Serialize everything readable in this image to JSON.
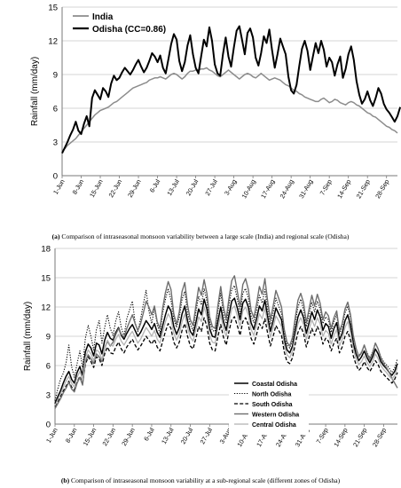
{
  "panels": [
    {
      "caption": {
        "letter": "a",
        "text": "Comparison of intraseasonal monsoon variability between a large scale (India) and regional scale (Odisha)"
      }
    },
    {
      "caption": {
        "letter": "b",
        "text": "Comparison of intraseasonal monsoon variability at a sub-regional scale (different zones of Odisha)"
      }
    }
  ],
  "chart_data": [
    {
      "type": "line",
      "title": "",
      "xlabel": "",
      "ylabel": "Rainfall (mm/day)",
      "ylim": [
        0,
        15
      ],
      "yticks": [
        0,
        3,
        6,
        9,
        12,
        15
      ],
      "grid": "horizontal",
      "legend_position": "top-left",
      "tick_labels": [
        "1-Jun",
        "8-Jun",
        "15-Jun",
        "22-Jun",
        "29-Jun",
        "6-Jul",
        "13-Jul",
        "20-Jul",
        "27-Jul",
        "3-Aug",
        "10-Aug",
        "17-Aug",
        "24-Aug",
        "31-Aug",
        "7-Sep",
        "14-Sep",
        "21-Sep",
        "28-Sep"
      ],
      "x_start": "1-Jun",
      "x_end": "30-Sep",
      "series": [
        {
          "name": "India",
          "color": "#8c8c8c",
          "values": [
            2.2,
            2.4,
            2.7,
            2.9,
            3.1,
            3.3,
            3.6,
            3.9,
            4.2,
            4.5,
            4.8,
            5.1,
            5.4,
            5.6,
            5.8,
            5.9,
            6.0,
            6.1,
            6.3,
            6.5,
            6.6,
            6.8,
            7.0,
            7.2,
            7.4,
            7.6,
            7.8,
            7.9,
            8.0,
            8.1,
            8.2,
            8.3,
            8.5,
            8.6,
            8.7,
            8.7,
            8.8,
            8.7,
            8.6,
            8.8,
            9.0,
            9.1,
            9.0,
            8.8,
            8.6,
            8.8,
            9.1,
            9.3,
            9.3,
            9.4,
            9.4,
            9.5,
            9.5,
            9.6,
            9.4,
            9.3,
            9.1,
            8.9,
            8.8,
            9.0,
            9.2,
            9.4,
            9.2,
            9.0,
            8.8,
            8.6,
            8.8,
            9.0,
            9.1,
            9.0,
            8.8,
            8.7,
            8.9,
            9.1,
            8.9,
            8.7,
            8.5,
            8.6,
            8.7,
            8.6,
            8.5,
            8.3,
            8.1,
            8.0,
            7.8,
            7.6,
            7.5,
            7.3,
            7.2,
            7.0,
            6.9,
            6.8,
            6.7,
            6.6,
            6.6,
            6.8,
            6.9,
            6.7,
            6.5,
            6.6,
            6.8,
            6.7,
            6.5,
            6.4,
            6.3,
            6.5,
            6.6,
            6.5,
            6.3,
            6.2,
            6.0,
            5.8,
            5.6,
            5.5,
            5.3,
            5.2,
            5.0,
            4.8,
            4.6,
            4.4,
            4.3,
            4.1,
            4.0,
            3.8
          ]
        },
        {
          "name": "Odisha (CC=0.86)",
          "color": "#000000",
          "values": [
            2.0,
            2.5,
            3.0,
            3.6,
            4.1,
            4.8,
            4.0,
            3.7,
            4.6,
            5.3,
            4.4,
            6.9,
            7.6,
            7.2,
            6.8,
            7.8,
            7.5,
            7.0,
            8.2,
            8.9,
            8.5,
            8.7,
            9.2,
            9.6,
            9.3,
            9.0,
            9.4,
            9.9,
            10.3,
            9.7,
            9.2,
            9.6,
            10.2,
            10.9,
            10.6,
            10.1,
            10.7,
            9.6,
            9.1,
            10.4,
            11.7,
            12.6,
            12.1,
            10.2,
            9.3,
            10.1,
            11.6,
            12.5,
            10.8,
            9.6,
            9.1,
            10.6,
            12.1,
            11.5,
            13.2,
            12.0,
            9.9,
            9.1,
            8.9,
            10.8,
            12.3,
            10.6,
            9.7,
            11.4,
            12.9,
            13.3,
            12.1,
            10.8,
            12.7,
            13.1,
            12.3,
            10.5,
            9.8,
            10.9,
            12.4,
            11.8,
            13.0,
            11.2,
            9.6,
            10.8,
            12.2,
            11.5,
            10.8,
            8.8,
            7.6,
            7.3,
            8.1,
            9.8,
            11.3,
            12.0,
            11.1,
            9.4,
            10.6,
            11.8,
            10.9,
            12.0,
            11.2,
            9.7,
            10.5,
            10.1,
            8.9,
            9.9,
            10.6,
            8.7,
            9.5,
            10.8,
            11.5,
            10.3,
            8.4,
            7.2,
            6.4,
            6.8,
            7.5,
            6.7,
            6.2,
            6.9,
            7.8,
            7.3,
            6.4,
            5.9,
            5.6,
            5.2,
            4.8,
            5.3,
            6.1
          ]
        }
      ]
    },
    {
      "type": "line",
      "title": "",
      "xlabel": "",
      "ylabel": "Rainfall (mm/day)",
      "ylim": [
        0,
        18
      ],
      "yticks": [
        0,
        3,
        6,
        9,
        12,
        15,
        18
      ],
      "grid": "horizontal",
      "legend_position": "bottom-center",
      "tick_labels": [
        "1-Jun",
        "8-Jun",
        "15-Jun",
        "22-Jun",
        "29-Jun",
        "6-Jul",
        "13-Jul",
        "20-Jul",
        "27-Jul",
        "3-Aug",
        "10-Aug",
        "17-Aug",
        "24-Aug",
        "31-Aug",
        "7-Sep",
        "14-Sep",
        "21-Sep",
        "28-Sep"
      ],
      "x_start": "1-Jun",
      "x_end": "30-Sep",
      "series": [
        {
          "name": "Coastal Odisha",
          "color": "#000000",
          "dash": "solid",
          "width": 1.5,
          "values": [
            2.1,
            2.8,
            3.4,
            4.2,
            4.9,
            5.4,
            4.6,
            4.2,
            5.3,
            5.9,
            5.0,
            7.4,
            8.2,
            7.8,
            7.0,
            8.3,
            8.1,
            7.2,
            8.6,
            9.4,
            8.8,
            8.6,
            9.4,
            9.9,
            9.1,
            8.7,
            9.3,
            9.8,
            10.2,
            9.6,
            9.0,
            9.4,
            10.0,
            10.6,
            10.2,
            9.7,
            10.3,
            9.4,
            8.9,
            10.1,
            11.2,
            12.1,
            11.6,
            10.0,
            9.2,
            9.9,
            11.3,
            12.1,
            10.6,
            9.5,
            9.1,
            10.4,
            11.8,
            11.2,
            12.8,
            11.8,
            9.8,
            9.0,
            8.9,
            10.6,
            12.0,
            10.5,
            9.6,
            11.2,
            12.6,
            12.9,
            11.9,
            10.7,
            12.4,
            12.8,
            12.0,
            10.4,
            9.7,
            10.8,
            12.1,
            11.6,
            12.7,
            11.0,
            9.5,
            10.6,
            11.9,
            11.3,
            10.7,
            8.7,
            7.6,
            7.3,
            8.0,
            9.6,
            11.0,
            11.7,
            10.9,
            9.3,
            10.4,
            11.5,
            10.7,
            11.7,
            11.0,
            9.6,
            10.3,
            10.0,
            8.8,
            9.8,
            10.4,
            8.6,
            9.3,
            10.6,
            11.2,
            10.1,
            8.3,
            7.2,
            6.5,
            6.9,
            7.5,
            6.8,
            6.3,
            6.9,
            7.7,
            7.2,
            6.4,
            6.0,
            5.7,
            5.3,
            5.0,
            5.4,
            6.2
          ]
        },
        {
          "name": "North Odisha",
          "color": "#000000",
          "dash": "dotted",
          "width": 1.1,
          "values": [
            2.4,
            3.6,
            4.6,
            5.2,
            6.3,
            8.1,
            5.9,
            4.8,
            6.2,
            7.5,
            5.8,
            8.8,
            10.1,
            9.0,
            7.6,
            9.7,
            10.6,
            8.3,
            9.9,
            11.2,
            9.8,
            9.1,
            10.6,
            11.5,
            9.9,
            9.0,
            10.8,
            11.7,
            12.6,
            10.4,
            9.5,
            10.8,
            12.3,
            13.7,
            11.6,
            10.3,
            11.9,
            10.2,
            9.3,
            11.4,
            12.8,
            13.9,
            12.7,
            10.8,
            9.9,
            10.9,
            12.8,
            13.6,
            11.4,
            10.2,
            9.6,
            11.5,
            13.1,
            12.2,
            13.9,
            12.6,
            10.5,
            9.6,
            9.5,
            11.6,
            13.4,
            11.3,
            10.3,
            12.2,
            13.8,
            14.2,
            12.8,
            11.3,
            13.4,
            13.9,
            12.9,
            11.1,
            10.4,
            11.6,
            13.2,
            12.4,
            13.8,
            11.8,
            10.2,
            11.4,
            12.9,
            12.1,
            11.3,
            9.3,
            8.1,
            7.8,
            8.6,
            10.4,
            12.0,
            12.8,
            11.7,
            10.0,
            11.2,
            12.5,
            11.5,
            12.6,
            11.8,
            10.3,
            11.0,
            10.7,
            9.4,
            10.5,
            11.2,
            9.2,
            10.0,
            11.4,
            12.1,
            10.9,
            8.9,
            7.7,
            7.0,
            7.4,
            8.1,
            7.3,
            6.8,
            7.4,
            8.3,
            7.7,
            6.9,
            6.4,
            6.1,
            5.7,
            5.3,
            5.8,
            6.7
          ]
        },
        {
          "name": "South Odisha",
          "color": "#000000",
          "dash": "dashed",
          "width": 1.3,
          "values": [
            1.8,
            2.3,
            2.8,
            3.4,
            3.9,
            4.4,
            3.8,
            3.5,
            4.3,
            4.9,
            4.2,
            6.1,
            6.9,
            6.4,
            5.8,
            6.9,
            6.7,
            6.0,
            7.2,
            7.9,
            7.3,
            7.2,
            7.9,
            8.4,
            7.7,
            7.3,
            7.9,
            8.3,
            8.7,
            8.1,
            7.6,
            8.0,
            8.5,
            9.0,
            8.6,
            8.2,
            8.7,
            7.9,
            7.5,
            8.5,
            9.5,
            10.3,
            9.8,
            8.4,
            7.8,
            8.4,
            9.6,
            10.3,
            9.0,
            8.0,
            7.7,
            8.8,
            10.0,
            9.5,
            10.9,
            10.0,
            8.3,
            7.6,
            7.5,
            9.0,
            10.2,
            8.9,
            8.1,
            9.5,
            10.7,
            11.0,
            10.1,
            9.1,
            10.5,
            10.9,
            10.2,
            8.8,
            8.2,
            9.2,
            10.3,
            9.8,
            10.8,
            9.3,
            8.0,
            9.0,
            10.1,
            9.6,
            9.1,
            7.4,
            6.4,
            6.2,
            6.8,
            8.2,
            9.4,
            10.0,
            9.3,
            7.9,
            8.9,
            9.8,
            9.1,
            10.0,
            9.4,
            8.2,
            8.8,
            8.5,
            7.5,
            8.3,
            8.8,
            7.3,
            7.9,
            9.0,
            9.5,
            8.6,
            7.0,
            6.1,
            5.5,
            5.8,
            6.4,
            5.8,
            5.4,
            5.9,
            6.5,
            6.1,
            5.4,
            5.1,
            4.8,
            4.5,
            4.2,
            4.6,
            5.3
          ]
        },
        {
          "name": "Western Odisha",
          "color": "#6e6e6e",
          "dash": "solid",
          "width": 1.4,
          "values": [
            1.6,
            2.1,
            2.6,
            3.2,
            3.7,
            4.3,
            3.6,
            3.3,
            4.2,
            4.8,
            4.0,
            6.4,
            7.1,
            6.7,
            6.2,
            7.2,
            6.9,
            6.4,
            7.8,
            8.5,
            8.0,
            8.4,
            9.2,
            9.8,
            9.2,
            8.9,
            9.8,
            10.5,
            11.2,
            10.3,
            9.6,
            10.3,
            11.4,
            12.6,
            12.0,
            11.2,
            12.1,
            10.5,
            9.8,
            11.9,
            13.5,
            14.6,
            13.8,
            11.3,
            10.2,
            11.5,
            13.6,
            14.5,
            12.2,
            10.7,
            10.1,
            12.1,
            14.0,
            13.2,
            14.8,
            13.4,
            11.0,
            10.0,
            9.8,
            12.2,
            14.1,
            12.0,
            10.8,
            12.9,
            14.7,
            15.2,
            13.6,
            12.0,
            14.3,
            14.9,
            13.8,
            11.7,
            10.9,
            12.3,
            14.1,
            13.3,
            14.9,
            12.6,
            10.7,
            12.1,
            13.7,
            12.9,
            12.0,
            9.7,
            8.4,
            8.0,
            8.9,
            10.9,
            12.7,
            13.4,
            12.4,
            10.4,
            11.8,
            13.2,
            12.1,
            13.3,
            12.4,
            10.7,
            11.5,
            11.1,
            9.8,
            10.9,
            11.6,
            9.5,
            10.3,
            11.8,
            12.5,
            11.2,
            9.1,
            7.8,
            6.9,
            7.3,
            8.1,
            7.2,
            6.6,
            7.3,
            8.3,
            7.7,
            6.8,
            6.2,
            5.8,
            5.3,
            4.7,
            4.2,
            3.7
          ]
        },
        {
          "name": "Central Odisha",
          "color": "#b4b4b4",
          "dash": "solid",
          "width": 1.3,
          "values": [
            1.9,
            2.5,
            3.1,
            3.8,
            4.4,
            4.9,
            4.2,
            3.8,
            4.8,
            5.4,
            4.6,
            6.8,
            7.6,
            7.2,
            6.5,
            7.6,
            7.4,
            6.6,
            7.9,
            8.6,
            8.1,
            8.0,
            8.7,
            9.2,
            8.5,
            8.1,
            8.6,
            9.1,
            9.5,
            8.9,
            8.3,
            8.7,
            9.3,
            9.9,
            9.5,
            9.0,
            9.6,
            8.7,
            8.3,
            9.4,
            10.5,
            11.3,
            10.8,
            9.3,
            8.6,
            9.2,
            10.5,
            11.3,
            9.9,
            8.9,
            8.5,
            9.7,
            11.0,
            10.5,
            12.0,
            11.0,
            9.1,
            8.4,
            8.3,
            9.9,
            11.2,
            9.8,
            9.0,
            10.5,
            11.8,
            12.1,
            11.1,
            10.0,
            11.6,
            12.0,
            11.2,
            9.7,
            9.1,
            10.1,
            11.3,
            10.8,
            11.9,
            10.3,
            8.9,
            9.9,
            11.1,
            10.6,
            10.0,
            8.1,
            7.1,
            6.8,
            7.5,
            9.0,
            10.3,
            10.9,
            10.2,
            8.7,
            9.7,
            10.7,
            10.0,
            10.9,
            10.3,
            9.0,
            9.6,
            9.3,
            8.2,
            9.1,
            9.7,
            8.0,
            8.7,
            9.9,
            10.5,
            9.4,
            7.7,
            6.7,
            6.1,
            6.4,
            7.0,
            6.3,
            5.9,
            6.4,
            7.2,
            6.7,
            6.0,
            5.6,
            5.3,
            4.9,
            4.6,
            5.0,
            5.8
          ]
        }
      ]
    }
  ]
}
